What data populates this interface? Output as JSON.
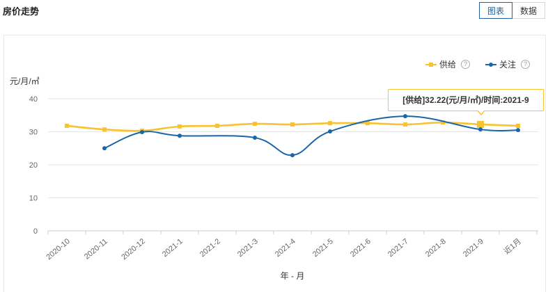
{
  "header": {
    "title": "房价走势",
    "view_toggle": [
      {
        "label": "图表",
        "active": true
      },
      {
        "label": "数据",
        "active": false
      }
    ]
  },
  "legend": {
    "help_glyph": "?",
    "help_icon": "question-circle-icon"
  },
  "tooltip": {
    "text": "[供给]32.22(元/月/㎡)/时间:2021-9",
    "series_index": 0,
    "point_index": 11
  },
  "chart_data": {
    "type": "line",
    "xlabel": "年 - 月",
    "ylabel": "元/月/㎡",
    "ylim": [
      0,
      40
    ],
    "yticks": [
      0,
      10,
      20,
      30,
      40
    ],
    "grid": true,
    "smooth": true,
    "categories": [
      "2020-10",
      "2020-11",
      "2020-12",
      "2021-1",
      "2021-2",
      "2021-3",
      "2021-4",
      "2021-5",
      "2021-6",
      "2021-7",
      "2021-8",
      "2021-9",
      "近1月"
    ],
    "series": [
      {
        "name": "供给",
        "color": "#f8c32f",
        "symbol_icon": "square-marker-icon",
        "values": [
          31.8,
          30.7,
          30.3,
          31.6,
          31.8,
          32.4,
          32.2,
          32.6,
          32.6,
          32.2,
          32.8,
          32.22,
          31.8
        ]
      },
      {
        "name": "关注",
        "color": "#1a65a8",
        "symbol_icon": "circle-marker-icon",
        "values": [
          null,
          25.0,
          29.9,
          28.8,
          null,
          28.2,
          22.9,
          30.1,
          null,
          34.7,
          null,
          30.7,
          30.5
        ]
      }
    ]
  }
}
